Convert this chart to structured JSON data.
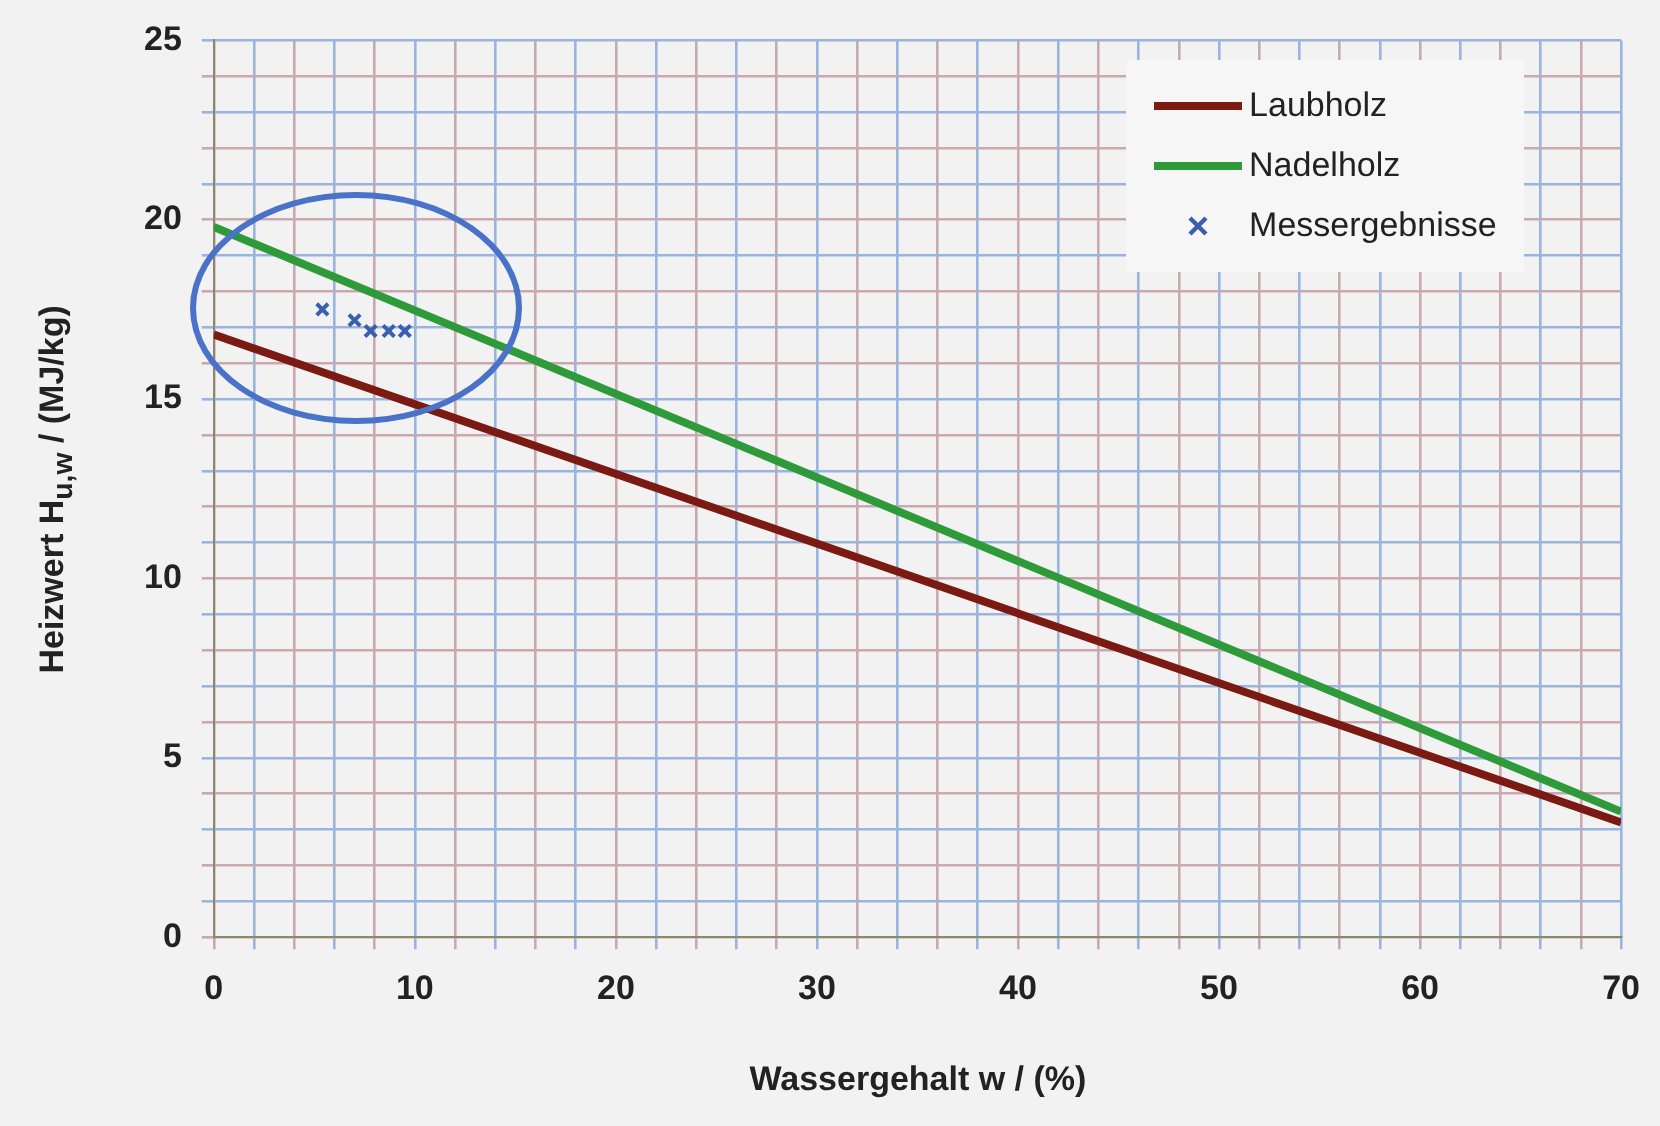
{
  "chart_data": {
    "type": "line",
    "xlabel": "Wassergehalt w / (%)",
    "ylabel": "Heizwert H$_{u,w}$ / (MJ/kg)",
    "xlim": [
      0,
      70
    ],
    "ylim": [
      0,
      25
    ],
    "xticks": [
      0,
      {
        "value": 2,
        "label": null
      },
      {
        "value": 4,
        "label": null
      },
      {
        "value": 6,
        "label": null
      },
      {
        "value": 8,
        "label": null
      },
      10,
      {
        "value": 12,
        "label": null
      },
      {
        "value": 14,
        "label": null
      },
      {
        "value": 16,
        "label": null
      },
      {
        "value": 18,
        "label": null
      },
      20,
      {
        "value": 22,
        "label": null
      },
      {
        "value": 24,
        "label": null
      },
      {
        "value": 26,
        "label": null
      },
      {
        "value": 28,
        "label": null
      },
      30,
      {
        "value": 32,
        "label": null
      },
      {
        "value": 34,
        "label": null
      },
      {
        "value": 36,
        "label": null
      },
      {
        "value": 38,
        "label": null
      },
      40,
      {
        "value": 42,
        "label": null
      },
      {
        "value": 44,
        "label": null
      },
      {
        "value": 46,
        "label": null
      },
      {
        "value": 48,
        "label": null
      },
      50,
      {
        "value": 52,
        "label": null
      },
      {
        "value": 54,
        "label": null
      },
      {
        "value": 56,
        "label": null
      },
      {
        "value": 58,
        "label": null
      },
      60,
      {
        "value": 62,
        "label": null
      },
      {
        "value": 64,
        "label": null
      },
      {
        "value": 66,
        "label": null
      },
      {
        "value": 68,
        "label": null
      },
      70
    ],
    "yticks": [
      0,
      {
        "value": 1,
        "label": null
      },
      {
        "value": 2,
        "label": null
      },
      {
        "value": 3,
        "label": null
      },
      {
        "value": 4,
        "label": null
      },
      5,
      {
        "value": 6,
        "label": null
      },
      {
        "value": 7,
        "label": null
      },
      {
        "value": 8,
        "label": null
      },
      {
        "value": 9,
        "label": null
      },
      10,
      {
        "value": 11,
        "label": null
      },
      {
        "value": 12,
        "label": null
      },
      {
        "value": 13,
        "label": null
      },
      {
        "value": 14,
        "label": null
      },
      15,
      {
        "value": 16,
        "label": null
      },
      {
        "value": 17,
        "label": null
      },
      {
        "value": 18,
        "label": null
      },
      {
        "value": 19,
        "label": null
      },
      20,
      {
        "value": 21,
        "label": null
      },
      {
        "value": 22,
        "label": null
      },
      {
        "value": 23,
        "label": null
      },
      {
        "value": 24,
        "label": null
      },
      25
    ],
    "grid": true,
    "legend": "top right",
    "series": [
      {
        "name": "Laubholz",
        "color": "#7a1a12",
        "x": [
          0,
          70
        ],
        "values": [
          16.8,
          3.2
        ],
        "marker": "none",
        "line_style": "solid"
      },
      {
        "name": "Nadelholz",
        "color": "#2e9a3a",
        "x": [
          0,
          70
        ],
        "values": [
          19.8,
          3.5
        ],
        "marker": "none",
        "line_style": "solid"
      },
      {
        "name": "Messergebnisse",
        "type": "scatter",
        "color": "#3a5fb0",
        "x": [
          5.4,
          7.0,
          7.8,
          8.7,
          9.5
        ],
        "values": [
          17.5,
          17.2,
          16.9,
          16.9,
          16.9
        ],
        "marker": "cross"
      }
    ]
  }
}
